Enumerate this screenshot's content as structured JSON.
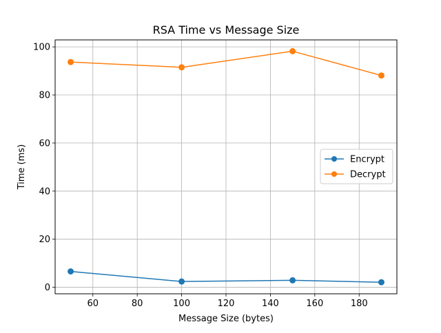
{
  "chart_data": {
    "type": "line",
    "title": "RSA Time vs Message Size",
    "xlabel": "Message Size (bytes)",
    "ylabel": "Time (ms)",
    "x": [
      50,
      100,
      150,
      190
    ],
    "series": [
      {
        "name": "Encrypt",
        "color": "#1f77b4",
        "marker": "circle",
        "values": [
          6.6,
          2.4,
          2.9,
          2.1
        ]
      },
      {
        "name": "Decrypt",
        "color": "#ff7f0e",
        "marker": "circle",
        "values": [
          93.7,
          91.5,
          98.2,
          88.1
        ]
      }
    ],
    "xlim": [
      43,
      197
    ],
    "ylim": [
      -2.7,
      102.9
    ],
    "xticks": [
      60,
      80,
      100,
      120,
      140,
      160,
      180
    ],
    "yticks": [
      0,
      20,
      40,
      60,
      80,
      100
    ],
    "grid": true,
    "legend_position": "center-right"
  }
}
